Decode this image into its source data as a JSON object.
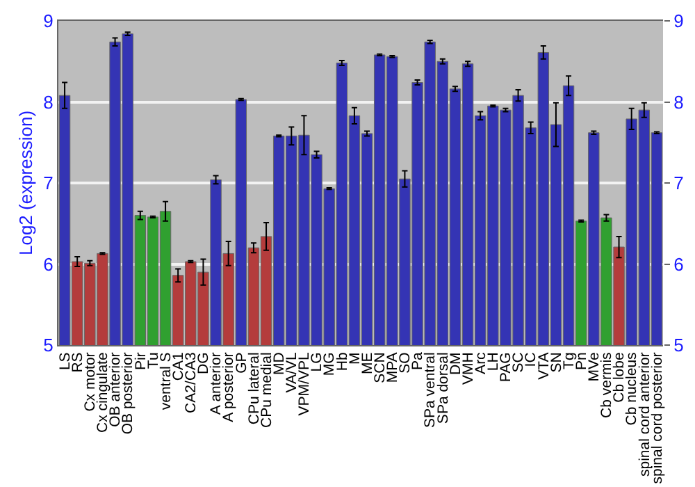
{
  "chart_data": {
    "type": "bar",
    "ylabel": "Log2 (expression)",
    "categories": [
      "LS",
      "RS",
      "Cx motor",
      "Cx cingulate",
      "OB anterior",
      "OB posterior",
      "Pir",
      "Tu",
      "ventral S",
      "CA1",
      "CA2/CA3",
      "DG",
      "A anterior",
      "A posterior",
      "GP",
      "CPu lateral",
      "CPu medial",
      "MD",
      "VA/VL",
      "VPM/VPL",
      "LG",
      "MG",
      "Hb",
      "M",
      "ME",
      "SCN",
      "MPA",
      "SO",
      "Pa",
      "SPa ventral",
      "SPa dorsal",
      "DM",
      "VMH",
      "Arc",
      "LH",
      "PAG",
      "SC",
      "IC",
      "VTA",
      "SN",
      "Tg",
      "Pn",
      "MVe",
      "Cb vermis",
      "Cb lobe",
      "Cb nucleus",
      "spinal cord anterior",
      "spinal cord posterior"
    ],
    "values": [
      8.08,
      6.03,
      6.01,
      6.13,
      8.74,
      8.84,
      6.6,
      6.58,
      6.65,
      5.86,
      6.03,
      5.9,
      7.04,
      6.13,
      8.03,
      6.2,
      6.34,
      7.58,
      7.58,
      7.59,
      7.35,
      6.93,
      8.48,
      7.83,
      7.61,
      8.58,
      8.56,
      7.05,
      8.24,
      8.74,
      8.5,
      8.16,
      8.47,
      7.83,
      7.95,
      7.9,
      8.08,
      7.68,
      8.61,
      7.72,
      8.2,
      6.53,
      7.62,
      6.57,
      6.21,
      7.79,
      7.9,
      7.62
    ],
    "errors": [
      0.16,
      0.06,
      0.03,
      0.01,
      0.05,
      0.02,
      0.05,
      0.01,
      0.12,
      0.08,
      0.01,
      0.16,
      0.05,
      0.15,
      0.01,
      0.06,
      0.17,
      0.01,
      0.11,
      0.24,
      0.04,
      0.01,
      0.03,
      0.1,
      0.03,
      0.01,
      0.01,
      0.1,
      0.03,
      0.02,
      0.03,
      0.03,
      0.03,
      0.05,
      0.01,
      0.02,
      0.07,
      0.07,
      0.08,
      0.27,
      0.12,
      0.01,
      0.02,
      0.04,
      0.13,
      0.13,
      0.09,
      0.01
    ],
    "colors": [
      "#3434b4",
      "#b43c3c",
      "#b43c3c",
      "#b43c3c",
      "#3434b4",
      "#3434b4",
      "#30a030",
      "#30a030",
      "#30a030",
      "#b43c3c",
      "#b43c3c",
      "#b43c3c",
      "#3434b4",
      "#b43c3c",
      "#3434b4",
      "#b43c3c",
      "#b43c3c",
      "#3434b4",
      "#3434b4",
      "#3434b4",
      "#3434b4",
      "#3434b4",
      "#3434b4",
      "#3434b4",
      "#3434b4",
      "#3434b4",
      "#3434b4",
      "#3434b4",
      "#3434b4",
      "#3434b4",
      "#3434b4",
      "#3434b4",
      "#3434b4",
      "#3434b4",
      "#3434b4",
      "#3434b4",
      "#3434b4",
      "#3434b4",
      "#3434b4",
      "#3434b4",
      "#3434b4",
      "#30a030",
      "#3434b4",
      "#30a030",
      "#b43c3c",
      "#3434b4",
      "#3434b4",
      "#3434b4"
    ],
    "ylim": [
      5,
      9
    ],
    "yticks": [
      5,
      6,
      7,
      8,
      9
    ],
    "y2lim": [
      5,
      9
    ],
    "y2ticks": [
      5,
      6,
      7,
      8,
      9
    ],
    "grid": "y"
  }
}
